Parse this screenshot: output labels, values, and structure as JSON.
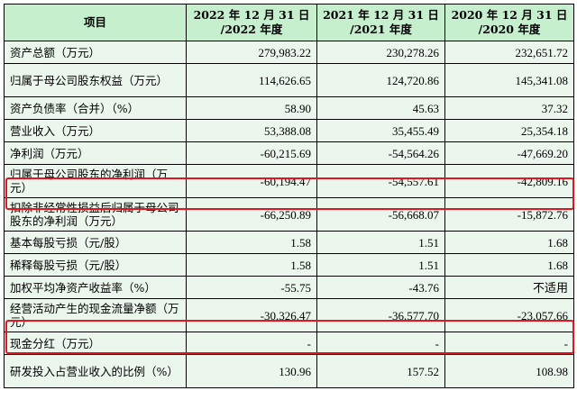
{
  "table": {
    "headers": [
      "项目",
      "2022 年 12 月 31 日\n/2022 年度",
      "2021 年 12 月 31 日\n/2021 年度",
      "2020 年 12 月 31 日\n/2020 年度"
    ],
    "rows": [
      {
        "label": "资产总额（万元）",
        "values": [
          "279,983.22",
          "230,278.26",
          "232,651.72"
        ]
      },
      {
        "label": "归属于母公司股东权益（万元）",
        "values": [
          "114,626.65",
          "124,720.86",
          "145,341.08"
        ]
      },
      {
        "label": "资产负债率（合并）（%）",
        "values": [
          "58.90",
          "45.63",
          "37.32"
        ]
      },
      {
        "label": "营业收入（万元）",
        "values": [
          "53,388.08",
          "35,455.49",
          "25,354.18"
        ]
      },
      {
        "label": "净利润（万元）",
        "values": [
          "-60,215.69",
          "-54,564.26",
          "-47,669.20"
        ]
      },
      {
        "label": "归属于母公司股东的净利润（万元）",
        "values": [
          "-60,194.47",
          "-54,557.61",
          "-42,809.16"
        ]
      },
      {
        "label": "扣除非经常性损益后归属于母公司股东的净利润（万元）",
        "values": [
          "-66,250.89",
          "-56,668.07",
          "-15,872.76"
        ]
      },
      {
        "label": "基本每股亏损（元/股）",
        "values": [
          "1.58",
          "1.51",
          "1.68"
        ]
      },
      {
        "label": "稀释每股亏损（元/股）",
        "values": [
          "1.58",
          "1.51",
          "1.68"
        ]
      },
      {
        "label": "加权平均净资产收益率（%）",
        "values": [
          "-55.75",
          "-43.76",
          "不适用"
        ]
      },
      {
        "label": "经营活动产生的现金流量净额（万元）",
        "values": [
          "-30,326.47",
          "-36,577.70",
          "-23,057.66"
        ]
      },
      {
        "label": "现金分红（万元）",
        "values": [
          "-",
          "-",
          "-"
        ]
      },
      {
        "label": "研发投入占营业收入的比例（%）",
        "values": [
          "130.96",
          "157.52",
          "108.98"
        ]
      }
    ]
  },
  "highlight_color": "#e8131e",
  "header_color": "#c6efce",
  "body_color": "#ebf6ec"
}
